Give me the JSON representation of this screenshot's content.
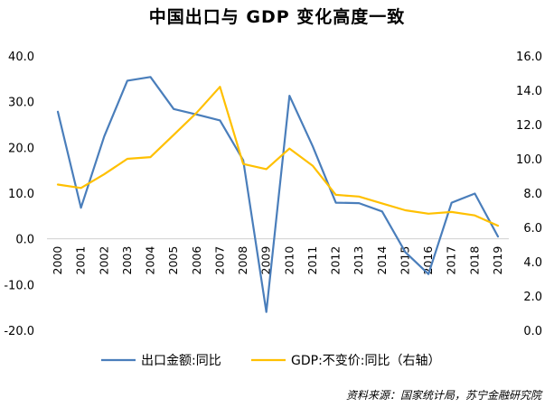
{
  "chart_data": {
    "type": "line",
    "title": "中国出口与 GDP 变化高度一致",
    "source": "资料来源：国家统计局，苏宁金融研究院",
    "categories": [
      "2000",
      "2001",
      "2002",
      "2003",
      "2004",
      "2005",
      "2006",
      "2007",
      "2008",
      "2009",
      "2010",
      "2011",
      "2012",
      "2013",
      "2014",
      "2015",
      "2016",
      "2017",
      "2018",
      "2019"
    ],
    "left_axis": {
      "ylim": [
        -20,
        40
      ],
      "ticks": [
        "40.0",
        "30.0",
        "20.0",
        "10.0",
        "0.0",
        "-10.0",
        "-20.0"
      ],
      "tick_values": [
        40,
        30,
        20,
        10,
        0,
        -10,
        -20
      ]
    },
    "right_axis": {
      "ylim": [
        0,
        16
      ],
      "ticks": [
        "16.0",
        "14.0",
        "12.0",
        "10.0",
        "8.0",
        "6.0",
        "4.0",
        "2.0",
        "0.0"
      ],
      "tick_values": [
        16,
        14,
        12,
        10,
        8,
        6,
        4,
        2,
        0
      ]
    },
    "series": [
      {
        "name": "出口金额:同比",
        "axis": "left",
        "color": "#4a7ebb",
        "values": [
          27.8,
          6.8,
          22.4,
          34.6,
          35.4,
          28.4,
          27.2,
          25.9,
          17.2,
          -16.0,
          31.3,
          20.3,
          7.9,
          7.8,
          6.0,
          -2.9,
          -7.7,
          7.9,
          9.9,
          0.5
        ]
      },
      {
        "name": "GDP:不变价:同比（右轴）",
        "axis": "right",
        "color": "#ffc000",
        "values": [
          8.5,
          8.3,
          9.1,
          10.0,
          10.1,
          11.4,
          12.7,
          14.2,
          9.7,
          9.4,
          10.6,
          9.6,
          7.9,
          7.8,
          7.4,
          7.0,
          6.8,
          6.9,
          6.7,
          6.1
        ]
      }
    ],
    "legend_position": "bottom",
    "grid": false
  }
}
